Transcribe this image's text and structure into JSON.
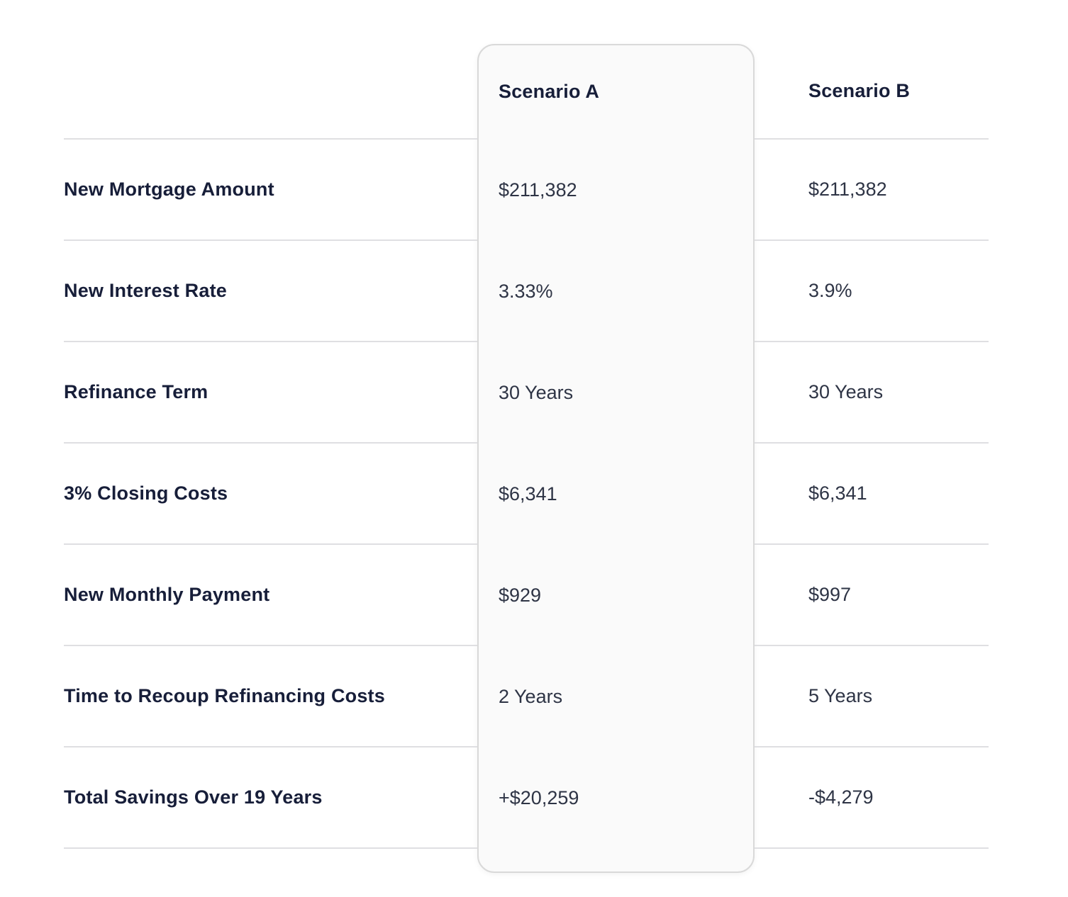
{
  "table": {
    "columns": [
      {
        "id": "scenario_a",
        "label": "Scenario A",
        "highlighted": true
      },
      {
        "id": "scenario_b",
        "label": "Scenario B",
        "highlighted": false
      }
    ],
    "rows": [
      {
        "label": "New Mortgage Amount",
        "scenario_a": "$211,382",
        "scenario_b": "$211,382"
      },
      {
        "label": "New Interest Rate",
        "scenario_a": "3.33%",
        "scenario_b": "3.9%"
      },
      {
        "label": "Refinance Term",
        "scenario_a": "30 Years",
        "scenario_b": "30 Years"
      },
      {
        "label": "3% Closing Costs",
        "scenario_a": "$6,341",
        "scenario_b": "$6,341"
      },
      {
        "label": "New Monthly Payment",
        "scenario_a": "$929",
        "scenario_b": "$997"
      },
      {
        "label": "Time to Recoup Refinancing Costs",
        "scenario_a": "2 Years",
        "scenario_b": "5 Years"
      },
      {
        "label": "Total Savings Over 19 Years",
        "scenario_a": "+$20,259",
        "scenario_b": "-$4,279"
      }
    ]
  },
  "colors": {
    "page_background": "#ffffff",
    "card_background": "#fafafa",
    "card_border": "#d9d9d9",
    "divider": "#dfdfe2",
    "heading_text": "#171e39",
    "value_text": "#2e3445"
  }
}
